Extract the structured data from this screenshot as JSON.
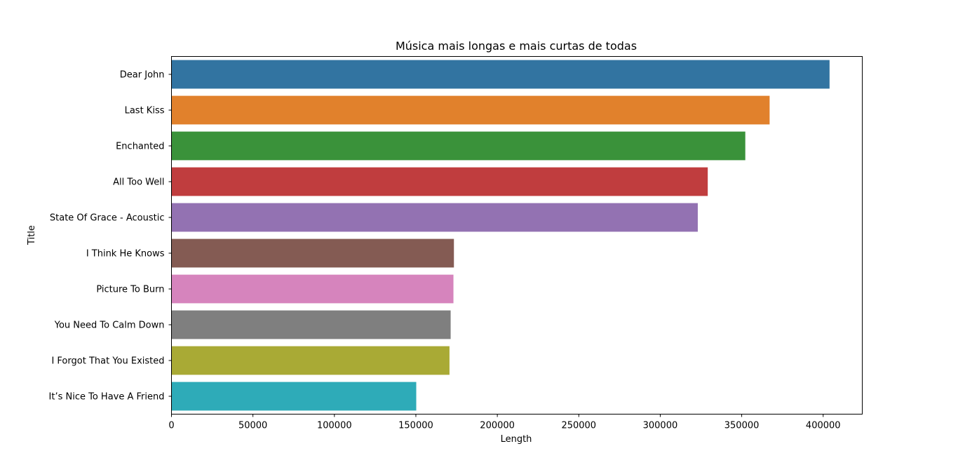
{
  "chart_data": {
    "type": "bar",
    "orientation": "horizontal",
    "title": "Música mais longas e mais curtas de todas",
    "xlabel": "Length",
    "ylabel": "Title",
    "categories": [
      "Dear John",
      "Last Kiss",
      "Enchanted",
      "All Too Well",
      "State Of Grace - Acoustic",
      "I Think He Knows",
      "Picture To Burn",
      "You Need To Calm Down",
      "I Forgot That You Existed",
      "It’s Nice To Have A Friend"
    ],
    "values": [
      403920,
      367133,
      352200,
      329160,
      323040,
      173360,
      173067,
      171360,
      170640,
      150240
    ],
    "colors": [
      "#3274a1",
      "#e1812c",
      "#3a923a",
      "#c03d3e",
      "#9372b2",
      "#845b53",
      "#d684bd",
      "#7f7f7f",
      "#a9aa35",
      "#2eabb8"
    ],
    "xlim": [
      0,
      424000
    ],
    "xticks": [
      0,
      50000,
      100000,
      150000,
      200000,
      250000,
      300000,
      350000,
      400000
    ],
    "xtick_labels": [
      "0",
      "50000",
      "100000",
      "150000",
      "200000",
      "250000",
      "300000",
      "350000",
      "400000"
    ],
    "grid": false,
    "legend": false
  }
}
